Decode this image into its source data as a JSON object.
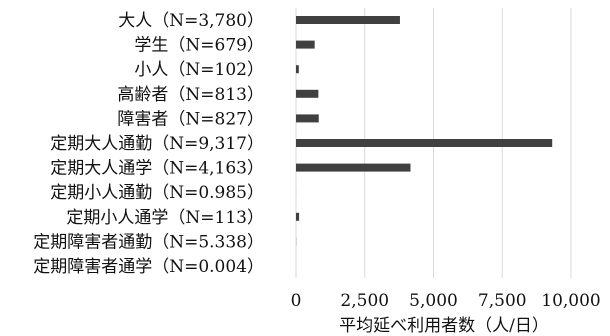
{
  "chart_data": {
    "type": "bar",
    "orientation": "horizontal",
    "title": "",
    "xlabel": "平均延べ利用者数（人/日）",
    "ylabel": "",
    "xlim": [
      0,
      10000
    ],
    "x_ticks": [
      0,
      2500,
      5000,
      7500,
      10000
    ],
    "x_tick_labels": [
      "0",
      "2,500",
      "5,000",
      "7,500",
      "10,000"
    ],
    "categories": [
      "大人（N=3,780）",
      "学生（N=679）",
      "小人（N=102）",
      "高齢者（N=813）",
      "障害者（N=827）",
      "定期大人通勤（N=9,317）",
      "定期大人通学（N=4,163）",
      "定期小人通勤（N=0.985）",
      "定期小人通学（N=113）",
      "定期障害者通勤（N=5.338）",
      "定期障害者通学（N=0.004）"
    ],
    "values": [
      3780,
      679,
      102,
      813,
      827,
      9317,
      4163,
      0.985,
      113,
      5.338,
      0.004
    ],
    "grid": true,
    "legend": "none",
    "bar_color": "#404040",
    "grid_color": "#d9d9d9"
  }
}
